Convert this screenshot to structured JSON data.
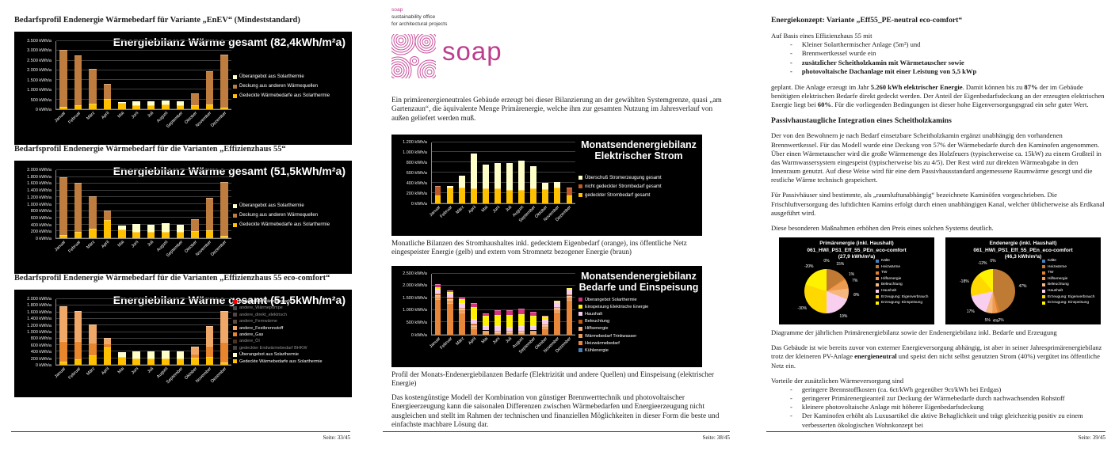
{
  "colors": {
    "brand_pink": "#BE3C8E",
    "panel_bg": "#000000"
  },
  "page1": {
    "heading1": "Bedarfsprofil Endenergie Wärmebedarf für Variante „EnEV“ (Mindeststandard)",
    "heading2": "Bedarfsprofil Endenergie Wärmebedarf für die Varianten „Effizienzhaus 55“",
    "heading3": "Bedarfsprofil Endenergie Wärmebedarf für die Varianten „Effizienzhaus 55 eco-comfort“",
    "footer": "Seite: 33/45"
  },
  "page2": {
    "brand_name": "soap",
    "brand_line1": "sustainability office",
    "brand_line2": "for architectural projects",
    "logo_text": "soap",
    "para1": "Ein primärenergieneutrales Gebäude erzeugt bei dieser Bilanzierung an der gewählten Systemgrenze, quasi „am Gartenzaun“, die äquivalente Menge Primärenergie, welche ihm zur gesamten Nutzung im Jahresverlauf von außen geliefert werden muß.",
    "caption1": "Monatliche Bilanzen des Stromhaushaltes inkl. gedecktem Eigenbedarf (orange), ins öffentliche Netz eingespeister Energie (gelb) und extern vom Stromnetz bezogener Energie (braun)",
    "caption2": "Profil der Monats-Endenergiebilanzen Bedarfe (Elektrizität und andere Quellen) und Einspeisung (elektrischer Energie)",
    "para2": "Das kostengünstige Modell der Kombination von günstiger Brennwerttechnik und photovoltaischer Energieerzeugung kann die saisonalen Differenzen zwischen Wärmebedarfen und Energieerzeugung nicht ausgleichen und stellt im Rahmen der technischen und finanziellen Möglichkeiten in dieser Form die beste und einfachste machbare Lösung dar.",
    "footer": "Seite: 38/45"
  },
  "page3": {
    "heading1": "Energiekonzept: Variante „Eff55_PE-neutral eco-comfort“",
    "intro1": "Auf Basis eines Effizienzhaus 55 mit",
    "bullets1": [
      "Kleiner Solarthermischer Anlage (5m²) und",
      "Brennwertkessel wurde ein",
      "zusätzlicher Scheitholzkamin mit Wärmetauscher sowie",
      "photovoltaische Dachanlage mit einer Leistung von 5,5 kWp"
    ],
    "para1_segments": [
      {
        "t": "geplant. Die Anlage erzeugt im Jahr "
      },
      {
        "t": "5.260 kWh elektrischer Energie",
        "b": true
      },
      {
        "t": ". Damit können bis zu "
      },
      {
        "t": "87%",
        "b": true
      },
      {
        "t": " der im Gebäude benötigten elektrischen Bedarfe direkt gedeckt werden. Der Anteil der Eigenbedarfsdeckung an der erzeugten elektrischen Energie liegt bei "
      },
      {
        "t": "60%",
        "b": true
      },
      {
        "t": ". Für die vorliegenden Bedingungen ist dieser hohe Eigenversorgungsgrad ein sehr guter Wert."
      }
    ],
    "heading2": "Passivhaustaugliche Integration eines Scheitholzkamins",
    "para2": "Der von den Bewohnern je nach Bedarf einsetzbare Scheitholzkamin ergänzt unabhängig den vorhandenen Brennwertkessel. Für das Modell wurde eine Deckung von 57% der Wärmebedarfe durch den Kaminofen angenommen. Über einen Wärmetauscher wird die große Wärmemenge des Holzfeuers (typischerweise ca. 15kW) zu einem Großteil in das Warmwassersystem eingespeist (typischerweise bis zu 4/5). Der Rest wird zur direkten Wärmeabgabe in den Innenraum genutzt. Auf diese Weise wird für eine dem Passivhausstandard angemessene Raumwärme gesorgt und die restliche Wärme technisch gespeichert.",
    "para3": "Für Passivhäuser sind bestimmte, als „raumluftunabhängig“ bezeichnete Kaminöfen vorgeschrieben. Die Frischluftversorgung des luftdichten Kamins erfolgt durch einen unabhängigen Kanal, welcher üblicherweise als Erdkanal ausgeführt wird.",
    "para4": "Diese besonderen Maßnahmen erhöhen den Preis eines solchen Systems deutlich.",
    "caption": "Diagramme der jährlichen Primärenergiebilanz sowie der Endenergiebilanz inkl. Bedarfe und Erzeugung",
    "para5_segments": [
      {
        "t": "Das Gebäude ist wie bereits zuvor von externer Energieversorgung abhängig, ist aber in seiner Jahresprimärenergiebilanz trotz der kleineren PV-Anlage "
      },
      {
        "t": "energieneutral",
        "b": true
      },
      {
        "t": " und speist den nicht selbst genutzten Strom (40%) vergütet ins öffentliche Netz ein."
      }
    ],
    "intro2": "Vorteile der zusätzlichen Wärmeversorgung sind",
    "bullets2": [
      "geringere Brennstoffkosten (ca. 6ct/kWh gegenüber 9ct/kWh bei Erdgas)",
      "geringerer Primärenergieanteil zur Deckung der Wärmebedarfe durch nachwachsenden Rohstoff",
      "kleinere photovoltaische Anlage mit höherer Eigenbedarfsdeckung",
      "Der Kaminofen erhöht als Luxusartikel die aktive Behaglichkeit und trägt gleichzeitig positiv zu einem verbesserten ökologischen Wohnkonzept bei"
    ],
    "footer": "Seite: 39/45"
  },
  "chart_data": [
    {
      "type": "bar",
      "title": "Energiebilanz Wärme gesamt (82,4kWh/m²a)",
      "ylabel": "kWh/a",
      "ymax": 3500,
      "ystep": 500,
      "ylim": [
        0,
        3500
      ],
      "grid": true,
      "legend_position": "right",
      "categories": [
        "Januar",
        "Februar",
        "März",
        "April",
        "Mai",
        "Juni",
        "Juli",
        "August",
        "September",
        "Oktober",
        "November",
        "Dezember"
      ],
      "series": [
        {
          "name": "Gedeckte Wärmebedarfe aus Solarthermie",
          "color": "#FFC000",
          "values": [
            120,
            190,
            300,
            520,
            330,
            200,
            200,
            230,
            220,
            220,
            240,
            100
          ]
        },
        {
          "name": "Deckung aus anderen Wärmequellen",
          "color": "#BE7D3F",
          "values": [
            2930,
            2590,
            1770,
            780,
            0,
            0,
            0,
            0,
            0,
            610,
            1710,
            2700
          ]
        },
        {
          "name": "Überangebot aus Solarthermie",
          "color": "#FFFFC8",
          "values": [
            0,
            0,
            0,
            0,
            50,
            200,
            190,
            210,
            180,
            0,
            0,
            0
          ]
        }
      ],
      "legend": [
        {
          "label": "Überangebot aus Solarthermie",
          "color": "#FFFFC8"
        },
        {
          "label": "Deckung aus anderen Wärmequellen",
          "color": "#BE7D3F"
        },
        {
          "label": "Gedeckte Wärmebedarfe aus Solarthermie",
          "color": "#FFC000"
        }
      ]
    },
    {
      "type": "bar",
      "title": "Energiebilanz Wärme gesamt (51,5kWh/m²a)",
      "ylabel": "kWh/a",
      "ymax": 2000,
      "ystep": 200,
      "ylim": [
        0,
        2000
      ],
      "grid": true,
      "legend_position": "right",
      "categories": [
        "Januar",
        "Februar",
        "März",
        "April",
        "Mai",
        "Juni",
        "Juli",
        "August",
        "September",
        "Oktober",
        "November",
        "Dezember"
      ],
      "series": [
        {
          "name": "Gedeckte Wärmebedarfe aus Solarthermie",
          "color": "#FFC000",
          "values": [
            90,
            180,
            280,
            530,
            250,
            190,
            190,
            190,
            190,
            210,
            230,
            75
          ]
        },
        {
          "name": "Deckung aus anderen Wärmequellen",
          "color": "#BE7D3F",
          "values": [
            1700,
            1450,
            960,
            280,
            0,
            0,
            0,
            0,
            0,
            350,
            950,
            1575
          ]
        },
        {
          "name": "Überangebot aus Solarthermie",
          "color": "#FFFFC8",
          "values": [
            0,
            0,
            0,
            0,
            130,
            220,
            210,
            250,
            210,
            0,
            0,
            0
          ]
        }
      ],
      "legend": [
        {
          "label": "Überangebot aus Solarthermie",
          "color": "#FFFFC8"
        },
        {
          "label": "Deckung aus anderen Wärmequellen",
          "color": "#BE7D3F"
        },
        {
          "label": "Gedeckte Wärmebedarfe aus Solarthermie",
          "color": "#FFC000"
        }
      ]
    },
    {
      "type": "bar",
      "title": "Energiebilanz Wärme gesamt (51,5kWh/m²a)",
      "ylabel": "kWh/a",
      "ymax": 2000,
      "ystep": 200,
      "ylim": [
        0,
        2000
      ],
      "grid": true,
      "legend_position": "right",
      "categories": [
        "Januar",
        "Februar",
        "März",
        "April",
        "Mai",
        "Juni",
        "Juli",
        "August",
        "September",
        "Oktober",
        "November",
        "Dezember"
      ],
      "series": [
        {
          "name": "Gedeckte Wärmebedarfe aus Solarthermie",
          "color": "#FFC000",
          "values": [
            90,
            180,
            280,
            530,
            250,
            190,
            190,
            190,
            190,
            210,
            230,
            75
          ]
        },
        {
          "name": "andere_Gas",
          "color": "#E8862D",
          "values": [
            640,
            550,
            390,
            130,
            0,
            0,
            0,
            0,
            0,
            120,
            360,
            620
          ]
        },
        {
          "name": "andere_Festbrennstoff",
          "color": "#F0A868",
          "values": [
            1060,
            900,
            570,
            150,
            0,
            0,
            0,
            0,
            0,
            230,
            590,
            955
          ]
        },
        {
          "name": "Überangebot aus Solarthermie",
          "color": "#FFFFC8",
          "values": [
            0,
            0,
            0,
            0,
            130,
            220,
            210,
            250,
            210,
            0,
            0,
            0
          ]
        }
      ],
      "legend": [
        {
          "label": "ungedeckte Wärmebedarfe",
          "color": "#FF0000"
        },
        {
          "label": "andere_Wärmepumpe",
          "color": "#808080",
          "dim": true
        },
        {
          "label": "andere_direkt_elektrisch",
          "color": "#9B7E6E",
          "dim": true
        },
        {
          "label": "andere_Fernwärme",
          "color": "#A8896A",
          "dim": true
        },
        {
          "label": "andere_Festbrennstoff",
          "color": "#F0A868"
        },
        {
          "label": "andere_Gas",
          "color": "#E8862D"
        },
        {
          "label": "andere_Öl",
          "color": "#8A5A33",
          "dim": true
        },
        {
          "label": "gedeckter Endwärmebedarf BHKW",
          "color": "#777777",
          "dim": true
        },
        {
          "label": "Überangebot aus Solarthermie",
          "color": "#FFFFC8"
        },
        {
          "label": "Gedeckte Wärmebedarfe aus Solarthermie",
          "color": "#FFC000"
        }
      ]
    },
    {
      "type": "bar",
      "title": "Monatsendenergiebilanz\nElektrischer Strom",
      "ylabel": "kWh/a",
      "ymax": 1200,
      "ystep": 200,
      "ylim": [
        0,
        1200
      ],
      "grid": true,
      "legend_position": "right",
      "categories": [
        "Januar",
        "Februar",
        "März",
        "April",
        "Mai",
        "Juni",
        "Juli",
        "August",
        "September",
        "Oktober",
        "November",
        "Dezember"
      ],
      "series": [
        {
          "name": "gedeckter Strombedarf gesamt",
          "color": "#FFC000",
          "values": [
            150,
            300,
            310,
            295,
            295,
            290,
            250,
            260,
            295,
            275,
            305,
            145
          ]
        },
        {
          "name": "nicht gedeckter Strombedarf gesamt",
          "color": "#C05A28",
          "values": [
            180,
            0,
            0,
            0,
            0,
            0,
            0,
            0,
            0,
            0,
            0,
            160
          ]
        },
        {
          "name": "Überschuß Stromerzeugung gesamt",
          "color": "#FFFFC8",
          "values": [
            0,
            35,
            225,
            685,
            455,
            500,
            530,
            570,
            430,
            115,
            115,
            0
          ]
        }
      ],
      "legend": [
        {
          "label": "Überschuß Stromerzeugung gesamt",
          "color": "#FFFFC8"
        },
        {
          "label": "nicht gedeckter Strombedarf gesamt",
          "color": "#C05A28"
        },
        {
          "label": "gedeckter Strombedarf gesamt",
          "color": "#FFC000"
        }
      ]
    },
    {
      "type": "bar",
      "title": "Monatsendenergiebilanz\nBedarfe und Einspeisung",
      "ylabel": "kWh/a",
      "ymax": 2500,
      "ystep": 500,
      "ylim": [
        0,
        2500
      ],
      "grid": true,
      "legend_position": "right",
      "categories": [
        "Januar",
        "Februar",
        "März",
        "April",
        "Mai",
        "Juni",
        "Juli",
        "August",
        "September",
        "Oktober",
        "November",
        "Dezember"
      ],
      "series": [
        {
          "name": "Kühlenergie",
          "color": "#4A7EBB",
          "values": [
            0,
            0,
            0,
            0,
            0,
            0,
            0,
            0,
            0,
            0,
            0,
            0
          ]
        },
        {
          "name": "Heizwärmebedarf",
          "color": "#E8873A",
          "values": [
            1450,
            1300,
            900,
            250,
            0,
            0,
            0,
            0,
            0,
            240,
            930,
            1430
          ]
        },
        {
          "name": "Wärmebedarf Trinkwasser",
          "color": "#EE9D55",
          "values": [
            110,
            110,
            110,
            110,
            100,
            95,
            95,
            95,
            100,
            105,
            110,
            110
          ]
        },
        {
          "name": "Hilfsenergie",
          "color": "#F5B183",
          "values": [
            40,
            35,
            35,
            30,
            25,
            25,
            25,
            25,
            25,
            30,
            35,
            40
          ]
        },
        {
          "name": "Beleuchtung",
          "color": "#C55A11",
          "values": [
            60,
            55,
            50,
            45,
            40,
            35,
            35,
            40,
            40,
            45,
            55,
            60
          ]
        },
        {
          "name": "Haushalt",
          "color": "#F8CCEE",
          "values": [
            200,
            180,
            190,
            185,
            185,
            180,
            170,
            175,
            180,
            185,
            195,
            200
          ]
        },
        {
          "name": "Einspeisung Elektrische Energie",
          "color": "#FFF200",
          "values": [
            60,
            60,
            150,
            510,
            430,
            470,
            470,
            510,
            430,
            115,
            45,
            50
          ]
        },
        {
          "name": "Überangebot Solarthermie",
          "color": "#D6337F",
          "values": [
            130,
            60,
            65,
            140,
            90,
            185,
            195,
            225,
            145,
            30,
            0,
            0
          ]
        }
      ],
      "legend": [
        {
          "label": "Überangebot Solarthermie",
          "color": "#D6337F"
        },
        {
          "label": "Einspeisung Elektrische Energie",
          "color": "#FFF200"
        },
        {
          "label": "Haushalt",
          "color": "#F8CCEE"
        },
        {
          "label": "Beleuchtung",
          "color": "#C55A11"
        },
        {
          "label": "Hilfsenergie",
          "color": "#F5B183"
        },
        {
          "label": "Wärmebedarf Trinkwasser",
          "color": "#EE9D55"
        },
        {
          "label": "Heizwärmebedarf",
          "color": "#E8873A"
        },
        {
          "label": "Kühlenergie",
          "color": "#4A7EBB"
        }
      ]
    },
    {
      "type": "pie",
      "title": "Primärenergie (inkl. Haushalt)\n061_HWI_PS1_Eff_55_PEn_eco-comfort\n(27,9 kWh/m²a)",
      "legend_position": "right",
      "slices": [
        {
          "label": "Kälte",
          "pct": "0%",
          "value": 0,
          "color": "#4A7EBB"
        },
        {
          "label": "Heizwärme",
          "pct": "15%",
          "value": 15,
          "color": "#BF7B34"
        },
        {
          "label": "TW",
          "pct": "1%",
          "value": 1,
          "color": "#E2802C"
        },
        {
          "label": "Hilfsenergie",
          "pct": "7%",
          "value": 7,
          "color": "#ED9B50"
        },
        {
          "label": "Beleuchtung",
          "pct": "8%",
          "value": 8,
          "color": "#F6B77E"
        },
        {
          "label": "Haushalt",
          "pct": "19%",
          "value": 19,
          "color": "#F9CFEF"
        },
        {
          "label": "Erzeugung: Eigenverbrauch",
          "pct": "-30%",
          "value": 30,
          "color": "#FFD800"
        },
        {
          "label": "Erzeugung: Einspeisung",
          "pct": "-20%",
          "value": 20,
          "color": "#FFF200"
        }
      ]
    },
    {
      "type": "pie",
      "title": "Endenergie (inkl. Haushalt)\n061_HWI_PS1_Eff_55_PEn_eco-comfort\n(46,3 kWh/m²a)",
      "legend_position": "right",
      "slices": [
        {
          "label": "Kälte",
          "pct": "0%",
          "value": 0,
          "color": "#4A7EBB"
        },
        {
          "label": "Heizwärme",
          "pct": "47%",
          "value": 47,
          "color": "#BF7B34"
        },
        {
          "label": "TW",
          "pct": "2%",
          "value": 2,
          "color": "#E2802C"
        },
        {
          "label": "Hilfsenergie",
          "pct": "4%",
          "value": 4,
          "color": "#ED9B50"
        },
        {
          "label": "Beleuchtung",
          "pct": "5%",
          "value": 5,
          "color": "#F6B77E"
        },
        {
          "label": "Haushalt",
          "pct": "17%",
          "value": 17,
          "color": "#F9CFEF"
        },
        {
          "label": "Erzeugung: Eigenverbrauch",
          "pct": "-18%",
          "value": 18,
          "color": "#FFD800"
        },
        {
          "label": "Erzeugung: Einspeisung",
          "pct": "-12%",
          "value": 12,
          "color": "#FFF200"
        }
      ]
    }
  ]
}
